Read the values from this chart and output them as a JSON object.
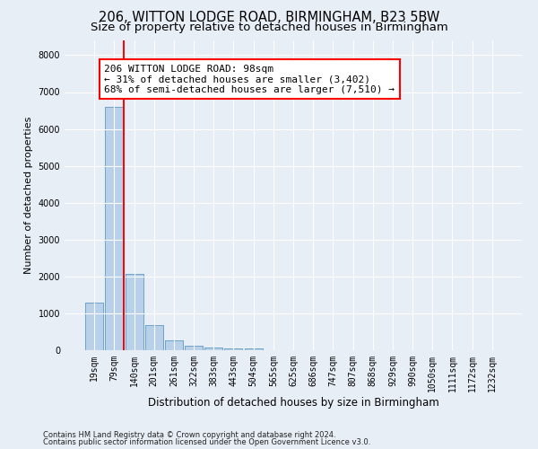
{
  "title1": "206, WITTON LODGE ROAD, BIRMINGHAM, B23 5BW",
  "title2": "Size of property relative to detached houses in Birmingham",
  "xlabel": "Distribution of detached houses by size in Birmingham",
  "ylabel": "Number of detached properties",
  "footnote1": "Contains HM Land Registry data © Crown copyright and database right 2024.",
  "footnote2": "Contains public sector information licensed under the Open Government Licence v3.0.",
  "annotation_line1": "206 WITTON LODGE ROAD: 98sqm",
  "annotation_line2": "← 31% of detached houses are smaller (3,402)",
  "annotation_line3": "68% of semi-detached houses are larger (7,510) →",
  "bar_labels": [
    "19sqm",
    "79sqm",
    "140sqm",
    "201sqm",
    "261sqm",
    "322sqm",
    "383sqm",
    "443sqm",
    "504sqm",
    "565sqm",
    "625sqm",
    "686sqm",
    "747sqm",
    "807sqm",
    "868sqm",
    "929sqm",
    "990sqm",
    "1050sqm",
    "1111sqm",
    "1172sqm",
    "1232sqm"
  ],
  "bar_values": [
    1300,
    6600,
    2070,
    690,
    270,
    130,
    85,
    55,
    55,
    0,
    0,
    0,
    0,
    0,
    0,
    0,
    0,
    0,
    0,
    0,
    0
  ],
  "bar_color": "#b8d0ea",
  "bar_edge_color": "#6a9fc8",
  "ylim": [
    0,
    8400
  ],
  "yticks": [
    0,
    1000,
    2000,
    3000,
    4000,
    5000,
    6000,
    7000,
    8000
  ],
  "bg_color": "#e8eef6",
  "plot_bg_color": "#e8eef6",
  "grid_color": "#ffffff",
  "title_fontsize": 10.5,
  "subtitle_fontsize": 9.5,
  "annotation_fontsize": 8,
  "axis_label_fontsize": 8.5,
  "tick_fontsize": 7,
  "ylabel_fontsize": 8,
  "footnote_fontsize": 6
}
